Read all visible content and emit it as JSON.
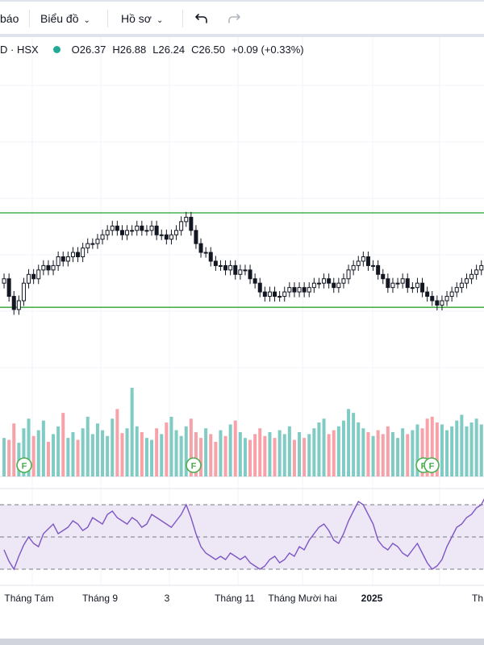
{
  "toolbar": {
    "alerts_label": "báo",
    "chart_label": "Biểu đồ",
    "profile_label": "Hồ sơ"
  },
  "legend": {
    "symbol": "D · HSX",
    "open_key": "O",
    "open": "26.37",
    "high_key": "H",
    "high": "26.88",
    "low_key": "L",
    "low": "26.24",
    "close_key": "C",
    "close": "26.50",
    "change": "+0.09 (+0.33%)",
    "status_color": "#22ab94"
  },
  "colors": {
    "up": "#22ab94",
    "down": "#f23645",
    "candle": "#131722",
    "vol_up": "#80cbc4",
    "vol_down": "#f7a1a8",
    "channel": "#4caf50",
    "rsi_line": "#7e57c2",
    "rsi_band": "#ede7f6"
  },
  "chart_data": [
    {
      "type": "candlestick",
      "title": "",
      "price_range": [
        21.5,
        31.5
      ],
      "price_min": 24.5,
      "price_max": 27.8,
      "channel_lines": [
        27.5,
        25.35
      ],
      "x_tick_labels": [
        "Tháng Tám",
        "Tháng 9",
        "3",
        "Tháng 11",
        "Tháng Mười hai",
        "2025",
        "Th"
      ],
      "dividend_markers": [
        "F",
        "F",
        "F",
        "F"
      ],
      "close": [
        26.0,
        25.6,
        25.3,
        25.5,
        25.9,
        26.1,
        26.0,
        26.2,
        26.3,
        26.2,
        26.3,
        26.5,
        26.4,
        26.5,
        26.6,
        26.5,
        26.7,
        26.8,
        26.8,
        26.9,
        27.0,
        27.1,
        27.2,
        27.1,
        27.0,
        27.1,
        27.1,
        27.2,
        27.1,
        27.1,
        27.2,
        27.0,
        27.0,
        26.9,
        27.0,
        27.1,
        27.3,
        27.4,
        27.1,
        26.8,
        26.6,
        26.6,
        26.4,
        26.3,
        26.3,
        26.2,
        26.3,
        26.1,
        26.2,
        26.2,
        26.0,
        25.9,
        25.7,
        25.6,
        25.7,
        25.6,
        25.6,
        25.7,
        25.8,
        25.7,
        25.8,
        25.7,
        25.8,
        25.9,
        25.9,
        26.0,
        25.9,
        25.8,
        25.9,
        26.0,
        26.2,
        26.3,
        26.4,
        26.5,
        26.3,
        26.3,
        26.1,
        26.0,
        25.8,
        25.9,
        25.9,
        26.0,
        25.8,
        25.8,
        25.9,
        25.7,
        25.6,
        25.5,
        25.4,
        25.5,
        25.6,
        25.7,
        25.8,
        25.9,
        26.0,
        26.1,
        26.2,
        26.3,
        26.5
      ]
    },
    {
      "type": "bar",
      "title": "",
      "values": [
        40,
        38,
        55,
        35,
        50,
        60,
        42,
        48,
        58,
        36,
        44,
        52,
        66,
        40,
        46,
        38,
        50,
        62,
        44,
        55,
        48,
        42,
        60,
        70,
        45,
        50,
        92,
        52,
        46,
        40,
        38,
        50,
        44,
        56,
        62,
        48,
        42,
        52,
        60,
        46,
        40,
        50,
        44,
        36,
        48,
        42,
        54,
        58,
        46,
        40,
        38,
        44,
        50,
        42,
        46,
        40,
        48,
        44,
        52,
        38,
        46,
        40,
        44,
        50,
        56,
        60,
        44,
        48,
        52,
        58,
        70,
        66,
        56,
        50,
        46,
        42,
        48,
        44,
        52,
        46,
        40,
        50,
        44,
        48,
        54,
        50,
        60,
        62,
        56,
        54,
        48,
        52,
        58,
        64,
        52,
        56,
        60,
        54,
        58
      ]
    },
    {
      "type": "line",
      "title": "",
      "ylim": [
        20,
        80
      ],
      "levels": [
        70,
        50,
        30
      ],
      "values": [
        42,
        35,
        30,
        38,
        45,
        50,
        46,
        44,
        52,
        55,
        58,
        52,
        54,
        56,
        60,
        58,
        54,
        56,
        62,
        60,
        58,
        64,
        66,
        62,
        60,
        58,
        62,
        60,
        56,
        58,
        64,
        62,
        60,
        58,
        56,
        60,
        64,
        70,
        62,
        52,
        44,
        40,
        38,
        36,
        38,
        36,
        40,
        38,
        36,
        38,
        34,
        32,
        30,
        32,
        36,
        38,
        34,
        36,
        40,
        38,
        44,
        42,
        48,
        52,
        56,
        58,
        54,
        48,
        46,
        52,
        60,
        66,
        72,
        70,
        64,
        58,
        48,
        44,
        42,
        46,
        44,
        40,
        38,
        42,
        46,
        40,
        34,
        30,
        32,
        36,
        44,
        50,
        56,
        58,
        62,
        64,
        68,
        70,
        76
      ]
    }
  ]
}
